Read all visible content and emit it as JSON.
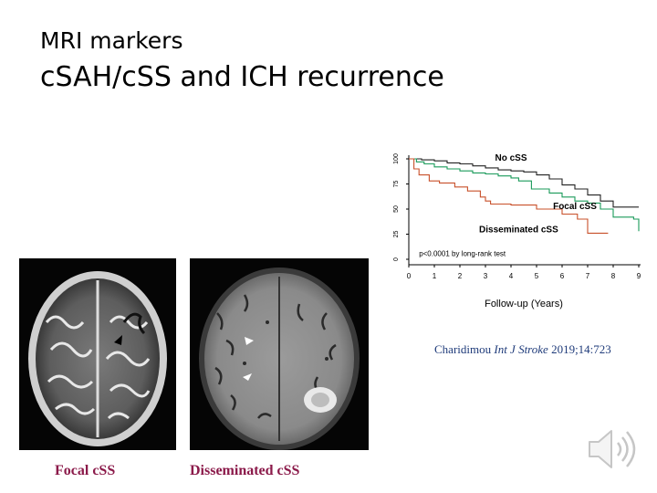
{
  "slide": {
    "title_line1": "MRI markers",
    "title_line2": "cSAH/cSS and ICH recurrence"
  },
  "images": [
    {
      "caption": "Focal cSS"
    },
    {
      "caption": "Disseminated cSS"
    }
  ],
  "citation": {
    "author": "Charidimou",
    "journal": "Int J Stroke",
    "details": "2019;14:723"
  },
  "chart_data": {
    "type": "line",
    "xlabel": "Follow-up (Years)",
    "ylabel": "",
    "xlim": [
      0,
      9
    ],
    "ylim": [
      0,
      100
    ],
    "x_ticks": [
      "0",
      "1",
      "2",
      "3",
      "4",
      "5",
      "6",
      "7",
      "8",
      "9"
    ],
    "y_ticks": [
      "0",
      "25",
      "50",
      "75",
      "100"
    ],
    "annotation": "p<0.0001 by long-rank test",
    "colors": {
      "no_css": "#222222",
      "focal_css": "#1a9a5a",
      "disseminated_css": "#c8502a"
    },
    "series": [
      {
        "name": "No cSS",
        "color": "#222222",
        "points": [
          [
            0,
            100
          ],
          [
            0.5,
            99
          ],
          [
            1,
            98
          ],
          [
            1.5,
            96
          ],
          [
            2,
            95
          ],
          [
            2.5,
            93
          ],
          [
            3,
            91
          ],
          [
            3.5,
            89
          ],
          [
            4,
            88
          ],
          [
            4.5,
            87
          ],
          [
            5,
            84
          ],
          [
            5.5,
            80
          ],
          [
            6,
            74
          ],
          [
            6.5,
            70
          ],
          [
            7,
            64
          ],
          [
            7.5,
            58
          ],
          [
            8,
            52
          ],
          [
            9,
            52
          ]
        ]
      },
      {
        "name": "Focal cSS",
        "color": "#1a9a5a",
        "points": [
          [
            0,
            100
          ],
          [
            0.3,
            97
          ],
          [
            0.6,
            95
          ],
          [
            1,
            92
          ],
          [
            1.5,
            90
          ],
          [
            2,
            88
          ],
          [
            2.5,
            86
          ],
          [
            3,
            85
          ],
          [
            3.5,
            83
          ],
          [
            4,
            81
          ],
          [
            4.3,
            78
          ],
          [
            4.8,
            70
          ],
          [
            5.5,
            66
          ],
          [
            6,
            62
          ],
          [
            6.5,
            58
          ],
          [
            7,
            56
          ],
          [
            7.5,
            50
          ],
          [
            8,
            42
          ],
          [
            8.8,
            40
          ],
          [
            9,
            28
          ]
        ]
      },
      {
        "name": "Disseminated cSS",
        "color": "#c8502a",
        "points": [
          [
            0,
            100
          ],
          [
            0.2,
            90
          ],
          [
            0.4,
            84
          ],
          [
            0.8,
            78
          ],
          [
            1.2,
            76
          ],
          [
            1.8,
            72
          ],
          [
            2.3,
            68
          ],
          [
            2.8,
            62
          ],
          [
            3,
            58
          ],
          [
            3.2,
            55
          ],
          [
            4,
            54
          ],
          [
            5,
            50
          ],
          [
            6,
            45
          ],
          [
            6.6,
            40
          ],
          [
            7,
            26
          ],
          [
            7.8,
            26
          ]
        ]
      }
    ]
  }
}
